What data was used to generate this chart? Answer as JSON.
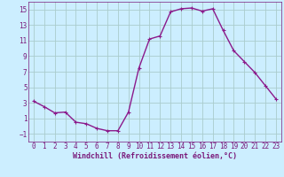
{
  "x": [
    0,
    1,
    2,
    3,
    4,
    5,
    6,
    7,
    8,
    9,
    10,
    11,
    12,
    13,
    14,
    15,
    16,
    17,
    18,
    19,
    20,
    21,
    22,
    23
  ],
  "y": [
    3.2,
    2.5,
    1.7,
    1.8,
    0.5,
    0.3,
    -0.3,
    -0.6,
    -0.6,
    1.8,
    7.5,
    11.2,
    11.6,
    14.7,
    15.1,
    15.2,
    14.8,
    15.1,
    12.3,
    9.7,
    8.3,
    6.9,
    5.2,
    3.5
  ],
  "line_color": "#8b1a8b",
  "marker": "+",
  "bg_color": "#cceeff",
  "grid_color": "#aacccc",
  "xlabel": "Windchill (Refroidissement éolien,°C)",
  "xlim": [
    -0.5,
    23.5
  ],
  "ylim": [
    -2,
    16
  ],
  "yticks": [
    -1,
    1,
    3,
    5,
    7,
    9,
    11,
    13,
    15
  ],
  "xticks": [
    0,
    1,
    2,
    3,
    4,
    5,
    6,
    7,
    8,
    9,
    10,
    11,
    12,
    13,
    14,
    15,
    16,
    17,
    18,
    19,
    20,
    21,
    22,
    23
  ],
  "tick_label_fontsize": 5.5,
  "xlabel_fontsize": 6.0,
  "axis_color": "#7a1a7a",
  "spine_color": "#7a1a7a",
  "line_width": 1.0,
  "marker_size": 3.5,
  "marker_edge_width": 0.8
}
